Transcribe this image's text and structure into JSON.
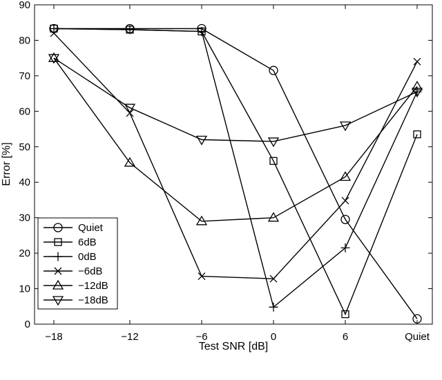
{
  "chart_data": {
    "type": "line",
    "title": "",
    "xlabel": "Test SNR [dB]",
    "ylabel": "Error [%]",
    "categories": [
      "−18",
      "−12",
      "−6",
      "0",
      "6",
      "Quiet"
    ],
    "ylim": [
      0,
      90
    ],
    "yticks": [
      0,
      10,
      20,
      30,
      40,
      50,
      60,
      70,
      80,
      90
    ],
    "grid": false,
    "legend_position": "bottom-left",
    "series": [
      {
        "name": "Quiet",
        "marker": "circle",
        "values": [
          83.3,
          83.3,
          83.3,
          71.5,
          29.5,
          1.5
        ]
      },
      {
        "name": "6dB",
        "marker": "square",
        "values": [
          83.3,
          83.0,
          82.5,
          46.0,
          2.8,
          53.5
        ]
      },
      {
        "name": "0dB",
        "marker": "plus",
        "values": [
          83.3,
          83.0,
          82.5,
          4.8,
          21.5,
          65.5
        ]
      },
      {
        "name": "−6dB",
        "marker": "x",
        "values": [
          82.0,
          59.5,
          13.5,
          12.8,
          34.8,
          74.0
        ]
      },
      {
        "name": "−12dB",
        "marker": "triangle-up",
        "values": [
          75.0,
          45.5,
          29.0,
          30.0,
          41.5,
          67.0
        ]
      },
      {
        "name": "−18dB",
        "marker": "triangle-down",
        "values": [
          75.0,
          61.0,
          52.0,
          51.5,
          56.0,
          65.5
        ]
      }
    ]
  }
}
